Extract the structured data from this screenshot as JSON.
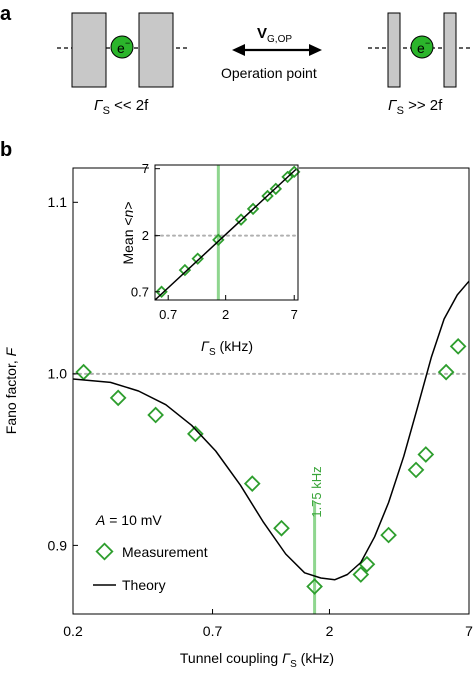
{
  "panel_a": {
    "letter": "a",
    "left_condition": {
      "symbol": "Γ",
      "sub": "S",
      "relation": " << 2f"
    },
    "right_condition": {
      "symbol": "Γ",
      "sub": "S",
      "relation": " >> 2f"
    },
    "arrow_label": {
      "main": "V",
      "sub": "G,OP"
    },
    "arrow_caption": "Operation point",
    "electron_label": "e",
    "electron_superscript": "−",
    "colors": {
      "barrier": "#c8c8c8",
      "electron": "#2bb52b"
    }
  },
  "panel_b": {
    "letter": "b",
    "annotation_vline": "1.75 kHz",
    "text_annotation": {
      "prefix": "A",
      "rest": " = 10 mV"
    },
    "legend": {
      "measurement": "Measurement",
      "theory": "Theory"
    }
  },
  "chart_data": [
    {
      "id": "main",
      "type": "scatter",
      "xlabel": "Tunnel coupling Γ_S (kHz)",
      "xlabel_parts": {
        "prefix": "Tunnel coupling ",
        "symbol": "Γ",
        "sub": "S",
        "suffix": " (kHz)"
      },
      "ylabel": "Fano factor, F",
      "ylabel_parts": {
        "prefix": "Fano factor, ",
        "symbol": "F"
      },
      "x_scale": "log",
      "xlim": [
        0.2,
        7
      ],
      "ylim": [
        0.86,
        1.12
      ],
      "xticks": [
        {
          "v": 0.2,
          "label": "0.2"
        },
        {
          "v": 0.7,
          "label": "0.7"
        },
        {
          "v": 2,
          "label": "2"
        },
        {
          "v": 7,
          "label": "7"
        }
      ],
      "yticks": [
        {
          "v": 0.9,
          "label": "0.9"
        },
        {
          "v": 1.0,
          "label": "1.0"
        },
        {
          "v": 1.1,
          "label": "1.1"
        }
      ],
      "reference_line": {
        "y": 1.0,
        "style": "dotted"
      },
      "vline": {
        "x": 1.75
      },
      "series": [
        {
          "name": "Measurement",
          "kind": "markers",
          "marker": "diamond",
          "color": "#2e9e2e",
          "x": [
            0.22,
            0.3,
            0.42,
            0.6,
            1.0,
            1.3,
            1.75,
            2.65,
            2.8,
            3.4,
            4.35,
            4.75,
            5.7,
            6.35
          ],
          "y": [
            1.001,
            0.986,
            0.976,
            0.965,
            0.936,
            0.91,
            0.876,
            0.883,
            0.889,
            0.906,
            0.944,
            0.953,
            1.001,
            1.016
          ]
        },
        {
          "name": "Theory",
          "kind": "line",
          "color": "#000000",
          "x": [
            0.2,
            0.28,
            0.36,
            0.46,
            0.58,
            0.72,
            0.9,
            1.1,
            1.35,
            1.6,
            1.85,
            2.1,
            2.35,
            2.65,
            3.0,
            3.4,
            3.9,
            4.4,
            5.0,
            5.6,
            6.3,
            7.0
          ],
          "y": [
            0.997,
            0.995,
            0.99,
            0.982,
            0.97,
            0.955,
            0.935,
            0.914,
            0.895,
            0.884,
            0.881,
            0.88,
            0.883,
            0.89,
            0.905,
            0.925,
            0.952,
            0.98,
            1.01,
            1.032,
            1.046,
            1.054
          ]
        }
      ]
    },
    {
      "id": "inset",
      "type": "scatter",
      "xlabel": "Γ_S (kHz)",
      "xlabel_parts": {
        "symbol": "Γ",
        "sub": "S",
        "suffix": " (kHz)"
      },
      "ylabel": "Mean <n>",
      "ylabel_parts": {
        "prefix": "Mean <",
        "symbol": "n",
        "suffix": ">"
      },
      "x_scale": "log",
      "y_scale": "log",
      "xlim": [
        0.55,
        7.5
      ],
      "ylim": [
        0.6,
        7.5
      ],
      "xticks": [
        {
          "v": 0.7,
          "label": "0.7"
        },
        {
          "v": 2,
          "label": "2"
        },
        {
          "v": 7,
          "label": "7"
        }
      ],
      "yticks": [
        {
          "v": 0.7,
          "label": "0.7"
        },
        {
          "v": 2,
          "label": "2"
        },
        {
          "v": 7,
          "label": "7"
        }
      ],
      "reference_line": {
        "y": 2,
        "style": "dotted"
      },
      "vline": {
        "x": 1.75
      },
      "series": [
        {
          "name": "Measurement",
          "kind": "markers",
          "marker": "diamond",
          "color": "#2e9e2e",
          "x": [
            0.62,
            0.95,
            1.2,
            1.75,
            2.65,
            3.3,
            4.3,
            5.0,
            6.2,
            7.0
          ],
          "y": [
            0.7,
            1.05,
            1.3,
            1.85,
            2.7,
            3.3,
            4.2,
            4.8,
            6.0,
            6.6
          ]
        },
        {
          "name": "Theory",
          "kind": "line",
          "color": "#000000",
          "x": [
            0.55,
            7.2
          ],
          "y": [
            0.6,
            6.9
          ]
        }
      ]
    }
  ]
}
